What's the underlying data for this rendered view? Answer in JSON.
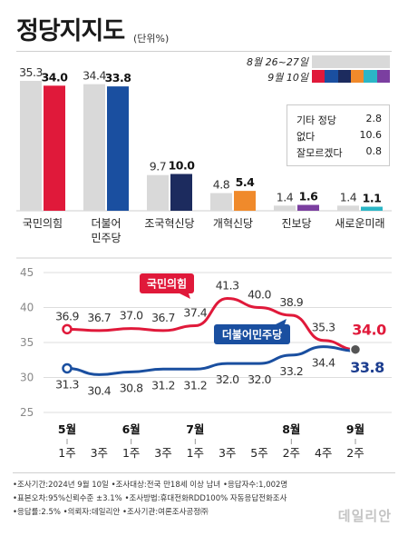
{
  "title": "정당지지도",
  "unit": "(단위%)",
  "legend": {
    "previous": "8월 26~27일",
    "current": "9월 10일",
    "current_colors": [
      "#e0193a",
      "#1a4fa0",
      "#1c2b5e",
      "#f08a2b",
      "#2bb6c6",
      "#7b3fa0"
    ]
  },
  "colors": {
    "previous": "#d9d9d9",
    "ppp": "#e0193a",
    "dp": "#1a4fa0",
    "text_dp": "#1c3d8f"
  },
  "others": [
    {
      "label": "기타 정당",
      "value": "2.8"
    },
    {
      "label": "없다",
      "value": "10.6"
    },
    {
      "label": "잘모르겠다",
      "value": "0.8"
    }
  ],
  "chart_data": [
    {
      "type": "bar",
      "series": [
        {
          "name": "8월 26~27일",
          "values": [
            35.3,
            34.4,
            9.7,
            4.8,
            1.4,
            1.4
          ]
        },
        {
          "name": "9월 10일",
          "values": [
            34.0,
            33.8,
            10.0,
            5.4,
            1.6,
            1.1
          ]
        }
      ],
      "categories": [
        [
          "국민의힘"
        ],
        [
          "더불어",
          "민주당"
        ],
        [
          "조국혁신당"
        ],
        [
          "개혁신당"
        ],
        [
          "진보당"
        ],
        [
          "새로운미래"
        ]
      ],
      "colors_current": [
        "#e0193a",
        "#1a4fa0",
        "#1c2b5e",
        "#f08a2b",
        "#7b3fa0",
        "#2bb6c6"
      ],
      "value_labels_previous": [
        "35.3",
        "34.4",
        "9.7",
        "4.8",
        "1.4",
        "1.4"
      ],
      "value_labels_current": [
        "34.0",
        "33.8",
        "10.0",
        "5.4",
        "1.6",
        "1.1"
      ]
    },
    {
      "type": "line",
      "x": [
        [
          "5월",
          "1주"
        ],
        [
          "",
          "3주"
        ],
        [
          "6월",
          "1주"
        ],
        [
          "",
          "3주"
        ],
        [
          "7월",
          "1주"
        ],
        [
          "",
          "3주"
        ],
        [
          "",
          "5주"
        ],
        [
          "8월",
          "2주"
        ],
        [
          "",
          "4주"
        ],
        [
          "9월",
          "2주"
        ]
      ],
      "ylim": [
        25,
        45
      ],
      "yticks": [
        "25",
        "30",
        "35",
        "40",
        "45"
      ],
      "grid": true,
      "series": [
        {
          "name": "국민의힘",
          "values": [
            36.9,
            36.7,
            37.0,
            36.7,
            37.4,
            41.3,
            40.0,
            38.9,
            35.3,
            34.0
          ],
          "labels": [
            "36.9",
            "36.7",
            "37.0",
            "36.7",
            "37.4",
            "41.3",
            "40.0",
            "38.9",
            "35.3",
            "34.0"
          ],
          "color": "#e0193a"
        },
        {
          "name": "더불어민주당",
          "values": [
            31.3,
            30.4,
            30.8,
            31.2,
            31.2,
            32.0,
            32.0,
            33.2,
            34.4,
            33.8
          ],
          "labels": [
            "31.3",
            "30.4",
            "30.8",
            "31.2",
            "31.2",
            "32.0",
            "32.0",
            "33.2",
            "34.4",
            "33.8"
          ],
          "color": "#1a4fa0"
        }
      ]
    }
  ],
  "footnotes": [
    [
      "조사기간:2024년 9월 10일",
      "조사대상:전국 만18세 이상 남녀",
      "응답자수:1,002명"
    ],
    [
      "표본오차:95%신뢰수준 ±3.1%",
      "조사방법:휴대전화RDD100% 자동응답전화조사"
    ],
    [
      "응답률:2.5%",
      "의뢰자:데일리안",
      "조사기관:여론조사공정㈜"
    ]
  ],
  "watermark": "데일리안"
}
